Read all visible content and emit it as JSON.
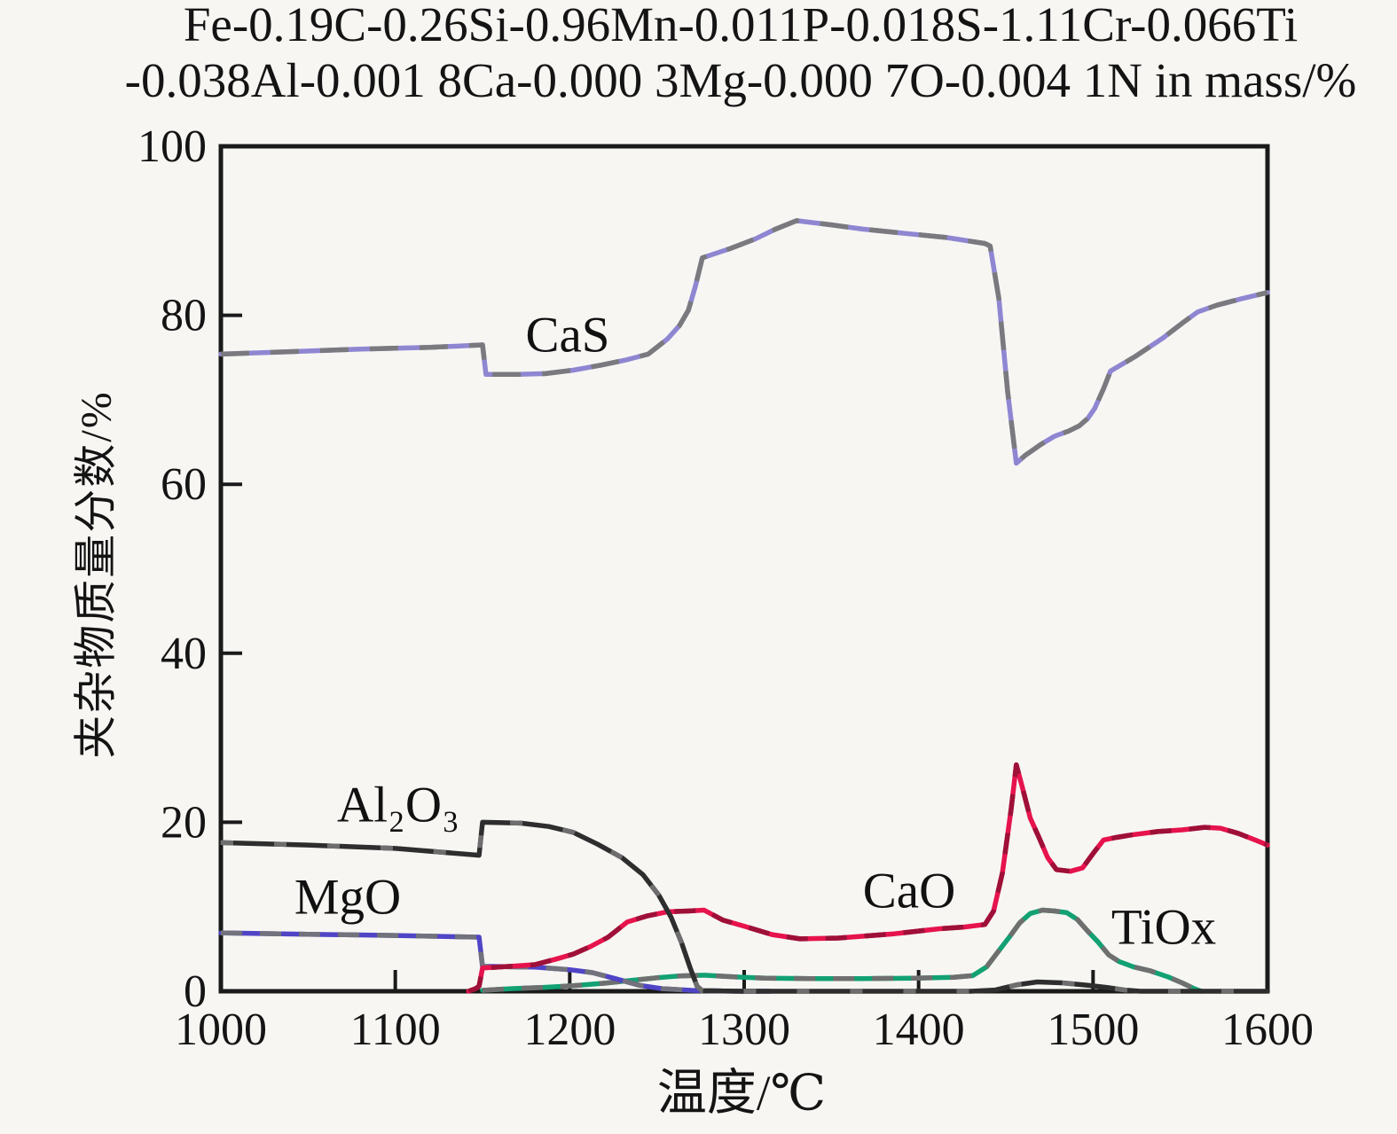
{
  "title": {
    "line1": "Fe-0.19C-0.26Si-0.96Mn-0.011P-0.018S-1.11Cr-0.066Ti",
    "line2": "-0.038Al-0.001 8Ca-0.000 3Mg-0.000 7O-0.004 1N in mass/%"
  },
  "labels": {
    "cas": "CaS",
    "al2o3": "Al₂O₃",
    "mgo": "MgO",
    "cao": "CaO",
    "tiox": "TiOx"
  },
  "colors": {
    "background": "#f7f6f3",
    "axis": "#1a1a1a",
    "text": "#141414",
    "cas": "#8f86d2",
    "al2o3": "#2e2e2e",
    "mgo": "#5044c6",
    "cao": "#e6134d",
    "tiox": "#12a173"
  },
  "chart_data": {
    "type": "line",
    "title": "Fe-0.19C-0.26Si-0.96Mn-0.011P-0.018S-1.11Cr-0.066Ti-0.038Al-0.001 8Ca-0.000 3Mg-0.000 7O-0.004 1N in mass/%",
    "xlabel": "温度/℃",
    "ylabel": "夹杂物质量分数/%",
    "xlim": [
      1000,
      1600
    ],
    "ylim": [
      0,
      100
    ],
    "x_ticks": [
      1000,
      1100,
      1200,
      1300,
      1400,
      1500,
      1600
    ],
    "y_ticks": [
      0,
      20,
      40,
      60,
      80,
      100
    ],
    "grid": false,
    "legend_position": "inline-labels",
    "axis_color": "#1a1a1a",
    "text_color": "#141414",
    "series": [
      {
        "name": "TiOx",
        "color": "#12a173",
        "overlay": "#6f6f6f",
        "dash": "24 20",
        "points": [
          [
            1150,
            0.1
          ],
          [
            1166,
            0.3
          ],
          [
            1184,
            0.45
          ],
          [
            1202,
            0.65
          ],
          [
            1220,
            0.95
          ],
          [
            1236,
            1.3
          ],
          [
            1250,
            1.6
          ],
          [
            1263,
            1.8
          ],
          [
            1277,
            1.9
          ],
          [
            1294,
            1.7
          ],
          [
            1312,
            1.55
          ],
          [
            1338,
            1.5
          ],
          [
            1368,
            1.5
          ],
          [
            1398,
            1.55
          ],
          [
            1420,
            1.65
          ],
          [
            1431,
            1.85
          ],
          [
            1439,
            2.9
          ],
          [
            1446,
            4.8
          ],
          [
            1452,
            6.4
          ],
          [
            1458,
            8.1
          ],
          [
            1464,
            9.2
          ],
          [
            1471,
            9.6
          ],
          [
            1478,
            9.5
          ],
          [
            1485,
            9.3
          ],
          [
            1491,
            8.5
          ],
          [
            1497,
            7.1
          ],
          [
            1503,
            5.8
          ],
          [
            1509,
            4.3
          ],
          [
            1515,
            3.5
          ],
          [
            1523,
            2.9
          ],
          [
            1533,
            2.4
          ],
          [
            1543,
            1.7
          ],
          [
            1551,
            1.0
          ],
          [
            1558,
            0.3
          ],
          [
            1562,
            0
          ]
        ]
      },
      {
        "name": "MgO",
        "color": "#5044c6",
        "overlay": "#72727c",
        "dash": "24 20",
        "points": [
          [
            1000,
            6.9
          ],
          [
            1050,
            6.75
          ],
          [
            1100,
            6.6
          ],
          [
            1148,
            6.4
          ],
          [
            1150,
            2.95
          ],
          [
            1180,
            2.85
          ],
          [
            1200,
            2.55
          ],
          [
            1213,
            2.2
          ],
          [
            1226,
            1.5
          ],
          [
            1240,
            0.7
          ],
          [
            1253,
            0.3
          ],
          [
            1270,
            0.1
          ],
          [
            1295,
            0
          ],
          [
            1315,
            0
          ]
        ]
      },
      {
        "name": "CaO",
        "color": "#e6134d",
        "overlay": "#9e1038",
        "dash": "24 20",
        "points": [
          [
            1142,
            0
          ],
          [
            1146,
            0.3
          ],
          [
            1148,
            0.6
          ],
          [
            1150,
            2.75
          ],
          [
            1166,
            2.95
          ],
          [
            1180,
            3.15
          ],
          [
            1192,
            3.8
          ],
          [
            1202,
            4.4
          ],
          [
            1212,
            5.3
          ],
          [
            1222,
            6.4
          ],
          [
            1233,
            8.2
          ],
          [
            1244,
            8.9
          ],
          [
            1256,
            9.4
          ],
          [
            1268,
            9.5
          ],
          [
            1277,
            9.6
          ],
          [
            1288,
            8.4
          ],
          [
            1300,
            7.7
          ],
          [
            1316,
            6.7
          ],
          [
            1332,
            6.2
          ],
          [
            1354,
            6.3
          ],
          [
            1386,
            6.8
          ],
          [
            1412,
            7.4
          ],
          [
            1426,
            7.6
          ],
          [
            1438,
            7.9
          ],
          [
            1443,
            9.5
          ],
          [
            1448,
            14.0
          ],
          [
            1453,
            21.5
          ],
          [
            1456,
            26.8
          ],
          [
            1459,
            24.5
          ],
          [
            1464,
            20.5
          ],
          [
            1469,
            18.2
          ],
          [
            1474,
            15.8
          ],
          [
            1479,
            14.4
          ],
          [
            1487,
            14.2
          ],
          [
            1494,
            14.6
          ],
          [
            1500,
            16.3
          ],
          [
            1506,
            17.9
          ],
          [
            1513,
            18.2
          ],
          [
            1522,
            18.5
          ],
          [
            1537,
            18.9
          ],
          [
            1551,
            19.1
          ],
          [
            1564,
            19.4
          ],
          [
            1573,
            19.3
          ],
          [
            1583,
            18.7
          ],
          [
            1593,
            17.9
          ],
          [
            1600,
            17.3
          ]
        ]
      },
      {
        "name": "Al2O3",
        "color": "#2e2e2e",
        "overlay": "#6e6e6e",
        "dash": "14 46",
        "points": [
          [
            1000,
            17.6
          ],
          [
            1050,
            17.3
          ],
          [
            1100,
            16.9
          ],
          [
            1148,
            16.1
          ],
          [
            1150,
            20.0
          ],
          [
            1172,
            19.9
          ],
          [
            1188,
            19.5
          ],
          [
            1202,
            18.8
          ],
          [
            1216,
            17.4
          ],
          [
            1230,
            15.8
          ],
          [
            1242,
            13.8
          ],
          [
            1251,
            11.4
          ],
          [
            1258,
            8.8
          ],
          [
            1264,
            5.8
          ],
          [
            1269,
            2.8
          ],
          [
            1273,
            0.6
          ],
          [
            1276,
            0.05
          ],
          [
            1300,
            0
          ],
          [
            1430,
            0
          ],
          [
            1444,
            0.15
          ],
          [
            1456,
            0.75
          ],
          [
            1468,
            1.1
          ],
          [
            1482,
            1.0
          ],
          [
            1497,
            0.7
          ],
          [
            1508,
            0.45
          ],
          [
            1518,
            0.15
          ],
          [
            1527,
            0
          ],
          [
            1600,
            0
          ]
        ]
      },
      {
        "name": "CaS",
        "color": "#8f86d2",
        "overlay": "#7a7a7e",
        "dash": "32 24",
        "points": [
          [
            1000,
            75.4
          ],
          [
            1040,
            75.7
          ],
          [
            1080,
            76.0
          ],
          [
            1120,
            76.2
          ],
          [
            1150,
            76.5
          ],
          [
            1152,
            73.0
          ],
          [
            1170,
            73.0
          ],
          [
            1186,
            73.1
          ],
          [
            1202,
            73.5
          ],
          [
            1218,
            74.1
          ],
          [
            1232,
            74.7
          ],
          [
            1245,
            75.4
          ],
          [
            1256,
            77.2
          ],
          [
            1263,
            78.8
          ],
          [
            1268,
            80.6
          ],
          [
            1272,
            83.4
          ],
          [
            1276,
            86.8
          ],
          [
            1292,
            87.9
          ],
          [
            1306,
            89.0
          ],
          [
            1318,
            90.2
          ],
          [
            1330,
            91.2
          ],
          [
            1350,
            90.7
          ],
          [
            1368,
            90.2
          ],
          [
            1392,
            89.7
          ],
          [
            1416,
            89.2
          ],
          [
            1438,
            88.5
          ],
          [
            1441,
            88.2
          ],
          [
            1446,
            82.0
          ],
          [
            1451,
            71.0
          ],
          [
            1456,
            62.5
          ],
          [
            1461,
            63.4
          ],
          [
            1470,
            64.7
          ],
          [
            1478,
            65.7
          ],
          [
            1486,
            66.3
          ],
          [
            1492,
            66.9
          ],
          [
            1497,
            67.8
          ],
          [
            1501,
            69.0
          ],
          [
            1506,
            71.3
          ],
          [
            1510,
            73.4
          ],
          [
            1515,
            74.0
          ],
          [
            1524,
            75.1
          ],
          [
            1540,
            77.3
          ],
          [
            1552,
            79.2
          ],
          [
            1560,
            80.4
          ],
          [
            1571,
            81.2
          ],
          [
            1584,
            81.9
          ],
          [
            1600,
            82.7
          ]
        ]
      }
    ]
  }
}
